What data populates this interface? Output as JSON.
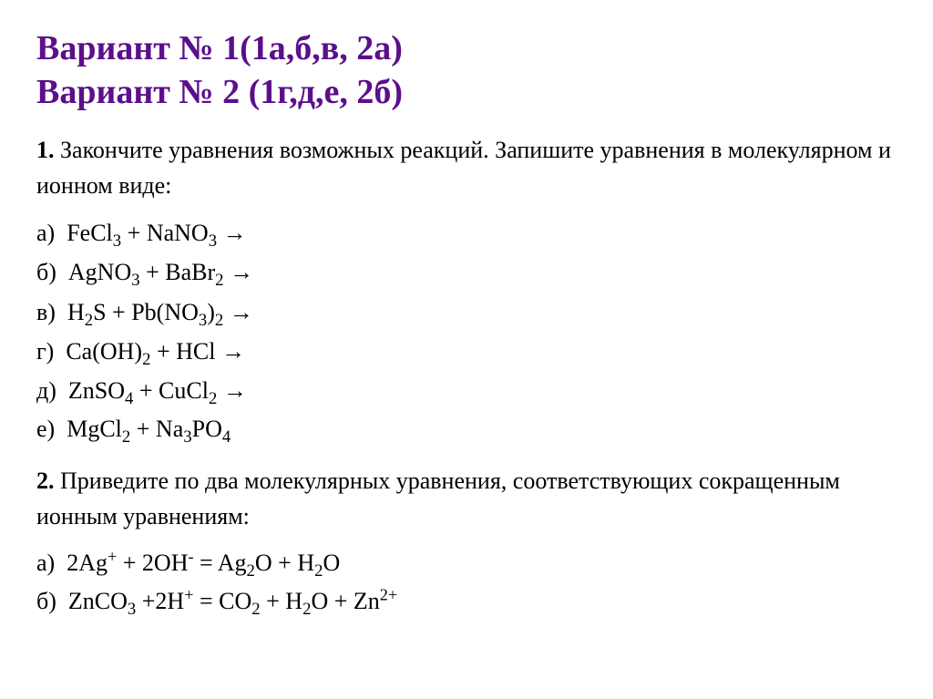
{
  "heading_line1": "Вариант № 1(1а,б,в, 2а)",
  "heading_line2": "Вариант № 2 (1г,д,е, 2б)",
  "heading_color": "#5b0f8b",
  "heading_fontsize": 38,
  "body_fontsize": 26,
  "body_color": "#000000",
  "background_color": "#ffffff",
  "task1": {
    "number": "1.",
    "text": "Закончите уравнения возможных реакций. Запишите уравнения в молекулярном и ионном виде:",
    "items": [
      {
        "label": "а)",
        "lhs": [
          [
            "FeCl",
            "3"
          ],
          " + ",
          [
            "NaNO",
            "3"
          ]
        ],
        "rhs_arrow": "→"
      },
      {
        "label": "б)",
        "lhs": [
          [
            "AgNO",
            "3"
          ],
          " + ",
          [
            "BaBr",
            "2"
          ]
        ],
        "rhs_arrow": "→"
      },
      {
        "label": "в)",
        "lhs": [
          [
            "H",
            "2"
          ],
          "S + Pb(",
          [
            "NO",
            "3"
          ],
          ")",
          [
            "",
            "2"
          ]
        ],
        "rhs_arrow": "→"
      },
      {
        "label": "г)",
        "lhs": [
          "Ca(OH)",
          [
            "",
            "2"
          ],
          " + HCl"
        ],
        "rhs_arrow": "→"
      },
      {
        "label": "д)",
        "lhs": [
          [
            "ZnSO",
            "4"
          ],
          " + ",
          [
            "CuCl",
            "2"
          ]
        ],
        "rhs_arrow": "→"
      },
      {
        "label": "е)",
        "lhs": [
          [
            "MgCl",
            "2"
          ],
          " + ",
          [
            "Na",
            "3"
          ],
          [
            "PO",
            "4"
          ]
        ],
        "rhs_arrow": ""
      }
    ]
  },
  "task2": {
    "number": "2.",
    "text": "Приведите по два молекулярных уравнения, соответствующих сокращенным ионным уравнениям:",
    "items": [
      {
        "label": "а)",
        "formula_parts": [
          "2Ag",
          [
            "sup",
            "+"
          ],
          " + 2OH",
          [
            "sup",
            "-"
          ],
          " = ",
          [
            "Ag",
            "2"
          ],
          "O + ",
          [
            "H",
            "2"
          ],
          "O"
        ]
      },
      {
        "label": "б)",
        "formula_parts": [
          [
            "ZnCO",
            "3"
          ],
          " +2H",
          [
            "sup",
            "+"
          ],
          " = ",
          [
            "CO",
            "2"
          ],
          " + ",
          [
            "H",
            "2"
          ],
          "O + Zn",
          [
            "sup",
            "2+"
          ]
        ]
      }
    ]
  }
}
